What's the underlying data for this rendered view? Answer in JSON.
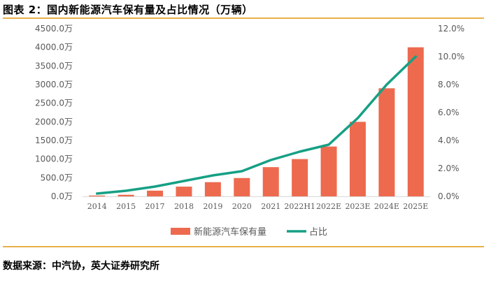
{
  "figure": {
    "title": "图表 2：国内新能源汽车保有量及占比情况（万辆）",
    "source": "数据来源：中汽协，英大证券研究所"
  },
  "colors": {
    "bar": "#ed6a4f",
    "line": "#16a085",
    "rule": "#e8b04a",
    "grid": "#d9d9d9",
    "text": "#595959"
  },
  "chart_data": {
    "type": "bar",
    "categories": [
      "2014",
      "2015",
      "2017",
      "2018",
      "2019",
      "2020",
      "2021",
      "2022H1",
      "2022E",
      "2023E",
      "2024E",
      "2025E"
    ],
    "series": [
      {
        "name": "新能源汽车保有量",
        "type": "bar",
        "axis": "left",
        "values": [
          22,
          42,
          153,
          261,
          381,
          492,
          784,
          1001,
          1337,
          2000,
          2900,
          4000
        ]
      },
      {
        "name": "占比",
        "type": "line",
        "axis": "right",
        "values": [
          0.2,
          0.4,
          0.7,
          1.1,
          1.5,
          1.8,
          2.6,
          3.2,
          3.7,
          5.6,
          8.0,
          10.0
        ]
      }
    ],
    "y_left": {
      "min": 0,
      "max": 4500,
      "step": 500,
      "tick_labels": [
        "0.0万",
        "500.0万",
        "1000.0万",
        "1500.0万",
        "2000.0万",
        "2500.0万",
        "3000.0万",
        "3500.0万",
        "4000.0万",
        "4500.0万"
      ]
    },
    "y_right": {
      "min": 0,
      "max": 12,
      "step": 2,
      "tick_labels": [
        "0.0%",
        "2.0%",
        "4.0%",
        "6.0%",
        "8.0%",
        "10.0%",
        "12.0%"
      ]
    },
    "legend": {
      "position": "bottom",
      "items": [
        "新能源汽车保有量",
        "占比"
      ]
    },
    "grid": false
  }
}
